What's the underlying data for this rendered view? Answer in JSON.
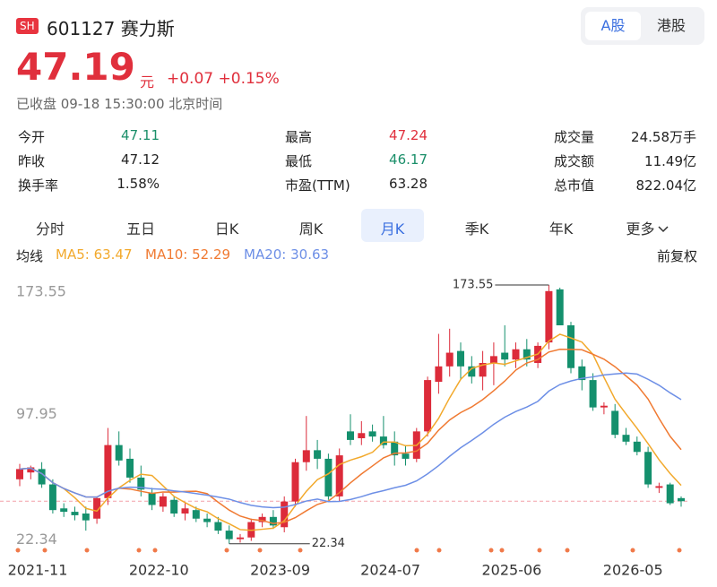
{
  "header": {
    "badge": "SH",
    "code_name": "601127 赛力斯",
    "market_tabs": [
      "A股",
      "港股"
    ],
    "price": 47.19,
    "unit": "元",
    "change": "+0.07",
    "change_pct": "+0.15%",
    "status": "已收盘 09-18 15:30:00 北京时间"
  },
  "stats": [
    [
      {
        "label": "今开",
        "value": "47.11",
        "color": "#1b8f6a"
      },
      {
        "label": "最高",
        "value": "47.24",
        "color": "#e02f3c"
      },
      {
        "label": "成交量",
        "value": "24.58万手",
        "color": "#222"
      }
    ],
    [
      {
        "label": "昨收",
        "value": "47.12",
        "color": "#222"
      },
      {
        "label": "最低",
        "value": "46.17",
        "color": "#1b8f6a"
      },
      {
        "label": "成交额",
        "value": "11.49亿",
        "color": "#222"
      }
    ],
    [
      {
        "label": "换手率",
        "value": "1.58%",
        "color": "#222"
      },
      {
        "label": "市盈(TTM)",
        "value": "63.28",
        "color": "#222"
      },
      {
        "label": "总市值",
        "value": "822.04亿",
        "color": "#222"
      }
    ]
  ],
  "period_tabs": [
    "分时",
    "五日",
    "日K",
    "周K",
    "月K",
    "季K",
    "年K",
    "更多"
  ],
  "selected_tab": 4,
  "ma_label": "均线",
  "adjust": "前复权",
  "chart_data": {
    "type": "candlestick",
    "categories": [
      "2021-11",
      null,
      null,
      null,
      null,
      null,
      null,
      null,
      null,
      null,
      null,
      "2022-10",
      null,
      null,
      null,
      null,
      null,
      null,
      null,
      null,
      null,
      null,
      "2023-09",
      null,
      null,
      null,
      null,
      null,
      null,
      null,
      null,
      null,
      "2024-07",
      null,
      null,
      null,
      null,
      null,
      null,
      null,
      null,
      null,
      null,
      "2025-06",
      null,
      null,
      null,
      null,
      null,
      null,
      null,
      null,
      null,
      null,
      "2026-05",
      null,
      null,
      null,
      null,
      null,
      null
    ],
    "open": [
      60,
      64,
      66,
      57,
      43,
      41,
      40,
      37,
      49,
      80,
      72,
      61,
      52,
      44,
      48,
      40,
      42,
      37,
      35,
      30,
      25,
      26,
      35,
      38,
      32,
      47,
      70,
      77,
      72,
      50,
      88,
      84,
      88,
      85,
      82,
      75,
      72,
      88,
      117,
      126,
      135,
      126,
      120,
      128,
      134,
      130,
      136,
      128,
      140,
      171,
      150,
      126,
      118,
      102,
      100,
      86,
      82,
      76,
      55,
      57,
      49
    ],
    "high": [
      69,
      68,
      70,
      60,
      46,
      44,
      44,
      50,
      90,
      88,
      78,
      68,
      55,
      52,
      50,
      46,
      44,
      40,
      38,
      33,
      28,
      37,
      40,
      42,
      50,
      72,
      97,
      83,
      75,
      78,
      98,
      94,
      92,
      97,
      88,
      80,
      90,
      120,
      145,
      148,
      140,
      132,
      135,
      140,
      150,
      140,
      142,
      140,
      173.55,
      172,
      152,
      130,
      122,
      105,
      104,
      90,
      85,
      79,
      58,
      58,
      50
    ],
    "low": [
      56,
      60,
      55,
      40,
      38,
      36,
      30,
      34,
      45,
      68,
      58,
      50,
      42,
      41,
      38,
      36,
      35,
      32,
      28,
      22.34,
      23,
      24,
      32,
      31,
      29,
      44,
      65,
      66,
      48,
      47,
      80,
      80,
      82,
      78,
      68,
      68,
      70,
      85,
      110,
      120,
      118,
      116,
      112,
      115,
      126,
      125,
      126,
      125,
      136,
      150,
      122,
      112,
      100,
      98,
      84,
      80,
      74,
      55,
      52,
      45,
      44
    ],
    "close": [
      66,
      67,
      57,
      42,
      41,
      39,
      36,
      49,
      80,
      71,
      61,
      54,
      45,
      50,
      40,
      43,
      37,
      35,
      30,
      25,
      26,
      35,
      38,
      33,
      47,
      70,
      77,
      72,
      50,
      74,
      83,
      87,
      85,
      80,
      74,
      72,
      88,
      118,
      126,
      134,
      126,
      120,
      128,
      132,
      130,
      136,
      130,
      138,
      170,
      150,
      125,
      118,
      102,
      103,
      86,
      82,
      76,
      57,
      56,
      46,
      47.19
    ],
    "up_color": "#dc2b3a",
    "down_color": "#14906d",
    "ylim": [
      18,
      183
    ],
    "yticks": [
      173.55,
      97.95,
      22.34
    ],
    "ma": [
      {
        "legend": "MA5: 63.47",
        "color": "#f2a92c"
      },
      {
        "legend": "MA10: 52.29",
        "color": "#f07a32"
      },
      {
        "legend": "MA20: 30.63",
        "color": "#6d8fe6"
      }
    ]
  }
}
